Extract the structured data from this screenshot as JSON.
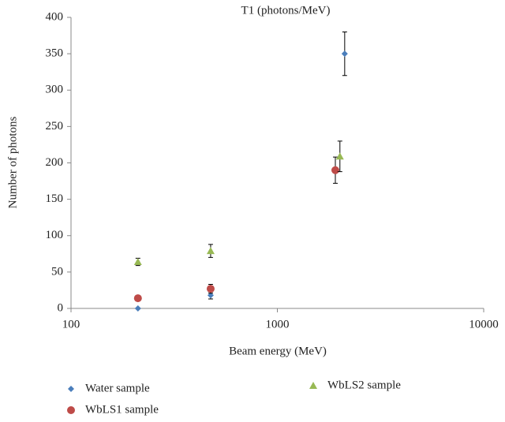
{
  "chart_data": {
    "type": "scatter",
    "title": "T1 (photons/MeV)",
    "x_label": "Beam energy (MeV)",
    "y_label": "Number of photons",
    "xscale": "log",
    "xlim": [
      100,
      10000
    ],
    "xticks": [
      100,
      1000,
      10000
    ],
    "ylim": [
      0,
      400
    ],
    "yticks": [
      0,
      50,
      100,
      150,
      200,
      250,
      300,
      350,
      400
    ],
    "grid": false,
    "legend": "bottom",
    "series": [
      {
        "name": "Water sample",
        "color": "#4a7ebb",
        "marker": "diamond",
        "x": [
          211,
          475,
          2120
        ],
        "values": [
          0,
          18,
          350
        ],
        "errors": [
          0,
          5,
          30
        ]
      },
      {
        "name": "WbLS1 sample",
        "color": "#be4b48",
        "marker": "circle",
        "x": [
          211,
          475,
          1910
        ],
        "values": [
          14,
          27,
          190
        ],
        "errors": [
          0,
          6,
          18
        ]
      },
      {
        "name": "WbLS2 sample",
        "color": "#98b954",
        "marker": "triangle",
        "x": [
          211,
          475,
          2010
        ],
        "values": [
          64,
          79,
          209
        ],
        "errors": [
          5,
          9,
          21
        ]
      }
    ]
  }
}
